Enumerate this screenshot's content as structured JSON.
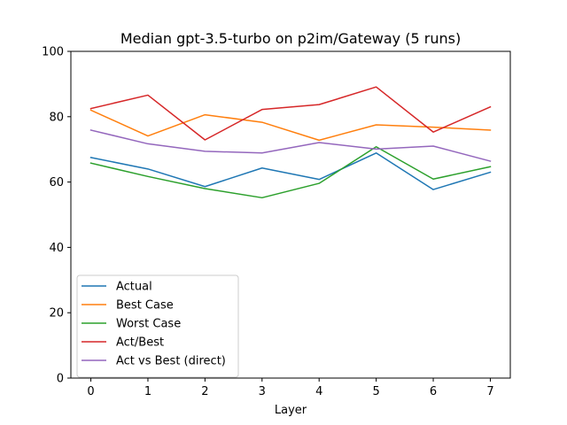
{
  "chart_data": {
    "type": "line",
    "title": "Median gpt-3.5-turbo on p2im/Gateway (5 runs)",
    "xlabel": "Layer",
    "ylabel": "",
    "xlim": [
      -0.35,
      7.35
    ],
    "ylim": [
      0,
      100
    ],
    "x": [
      0,
      1,
      2,
      3,
      4,
      5,
      6,
      7
    ],
    "xticks": [
      "0",
      "1",
      "2",
      "3",
      "4",
      "5",
      "6",
      "7"
    ],
    "yticks": [
      "0",
      "20",
      "40",
      "60",
      "80",
      "100"
    ],
    "ytick_values": [
      0,
      20,
      40,
      60,
      80,
      100
    ],
    "grid": false,
    "legend_position": "lower-left",
    "series": [
      {
        "name": "Actual",
        "color": "#1f77b4",
        "values": [
          67.5,
          64.0,
          58.6,
          64.3,
          60.8,
          68.9,
          57.7,
          63.0
        ]
      },
      {
        "name": "Best Case",
        "color": "#ff7f0e",
        "values": [
          82.0,
          74.1,
          80.6,
          78.3,
          72.8,
          77.5,
          76.8,
          75.9
        ]
      },
      {
        "name": "Worst Case",
        "color": "#2ca02c",
        "values": [
          65.8,
          61.7,
          58.0,
          55.2,
          59.6,
          70.8,
          60.9,
          64.7
        ]
      },
      {
        "name": "Act/Best",
        "color": "#d62728",
        "values": [
          82.5,
          86.6,
          72.9,
          82.2,
          83.7,
          89.1,
          75.3,
          83.0
        ]
      },
      {
        "name": "Act vs Best (direct)",
        "color": "#9467bd",
        "values": [
          75.9,
          71.7,
          69.4,
          68.9,
          72.1,
          70.1,
          71.0,
          66.4
        ]
      }
    ]
  }
}
